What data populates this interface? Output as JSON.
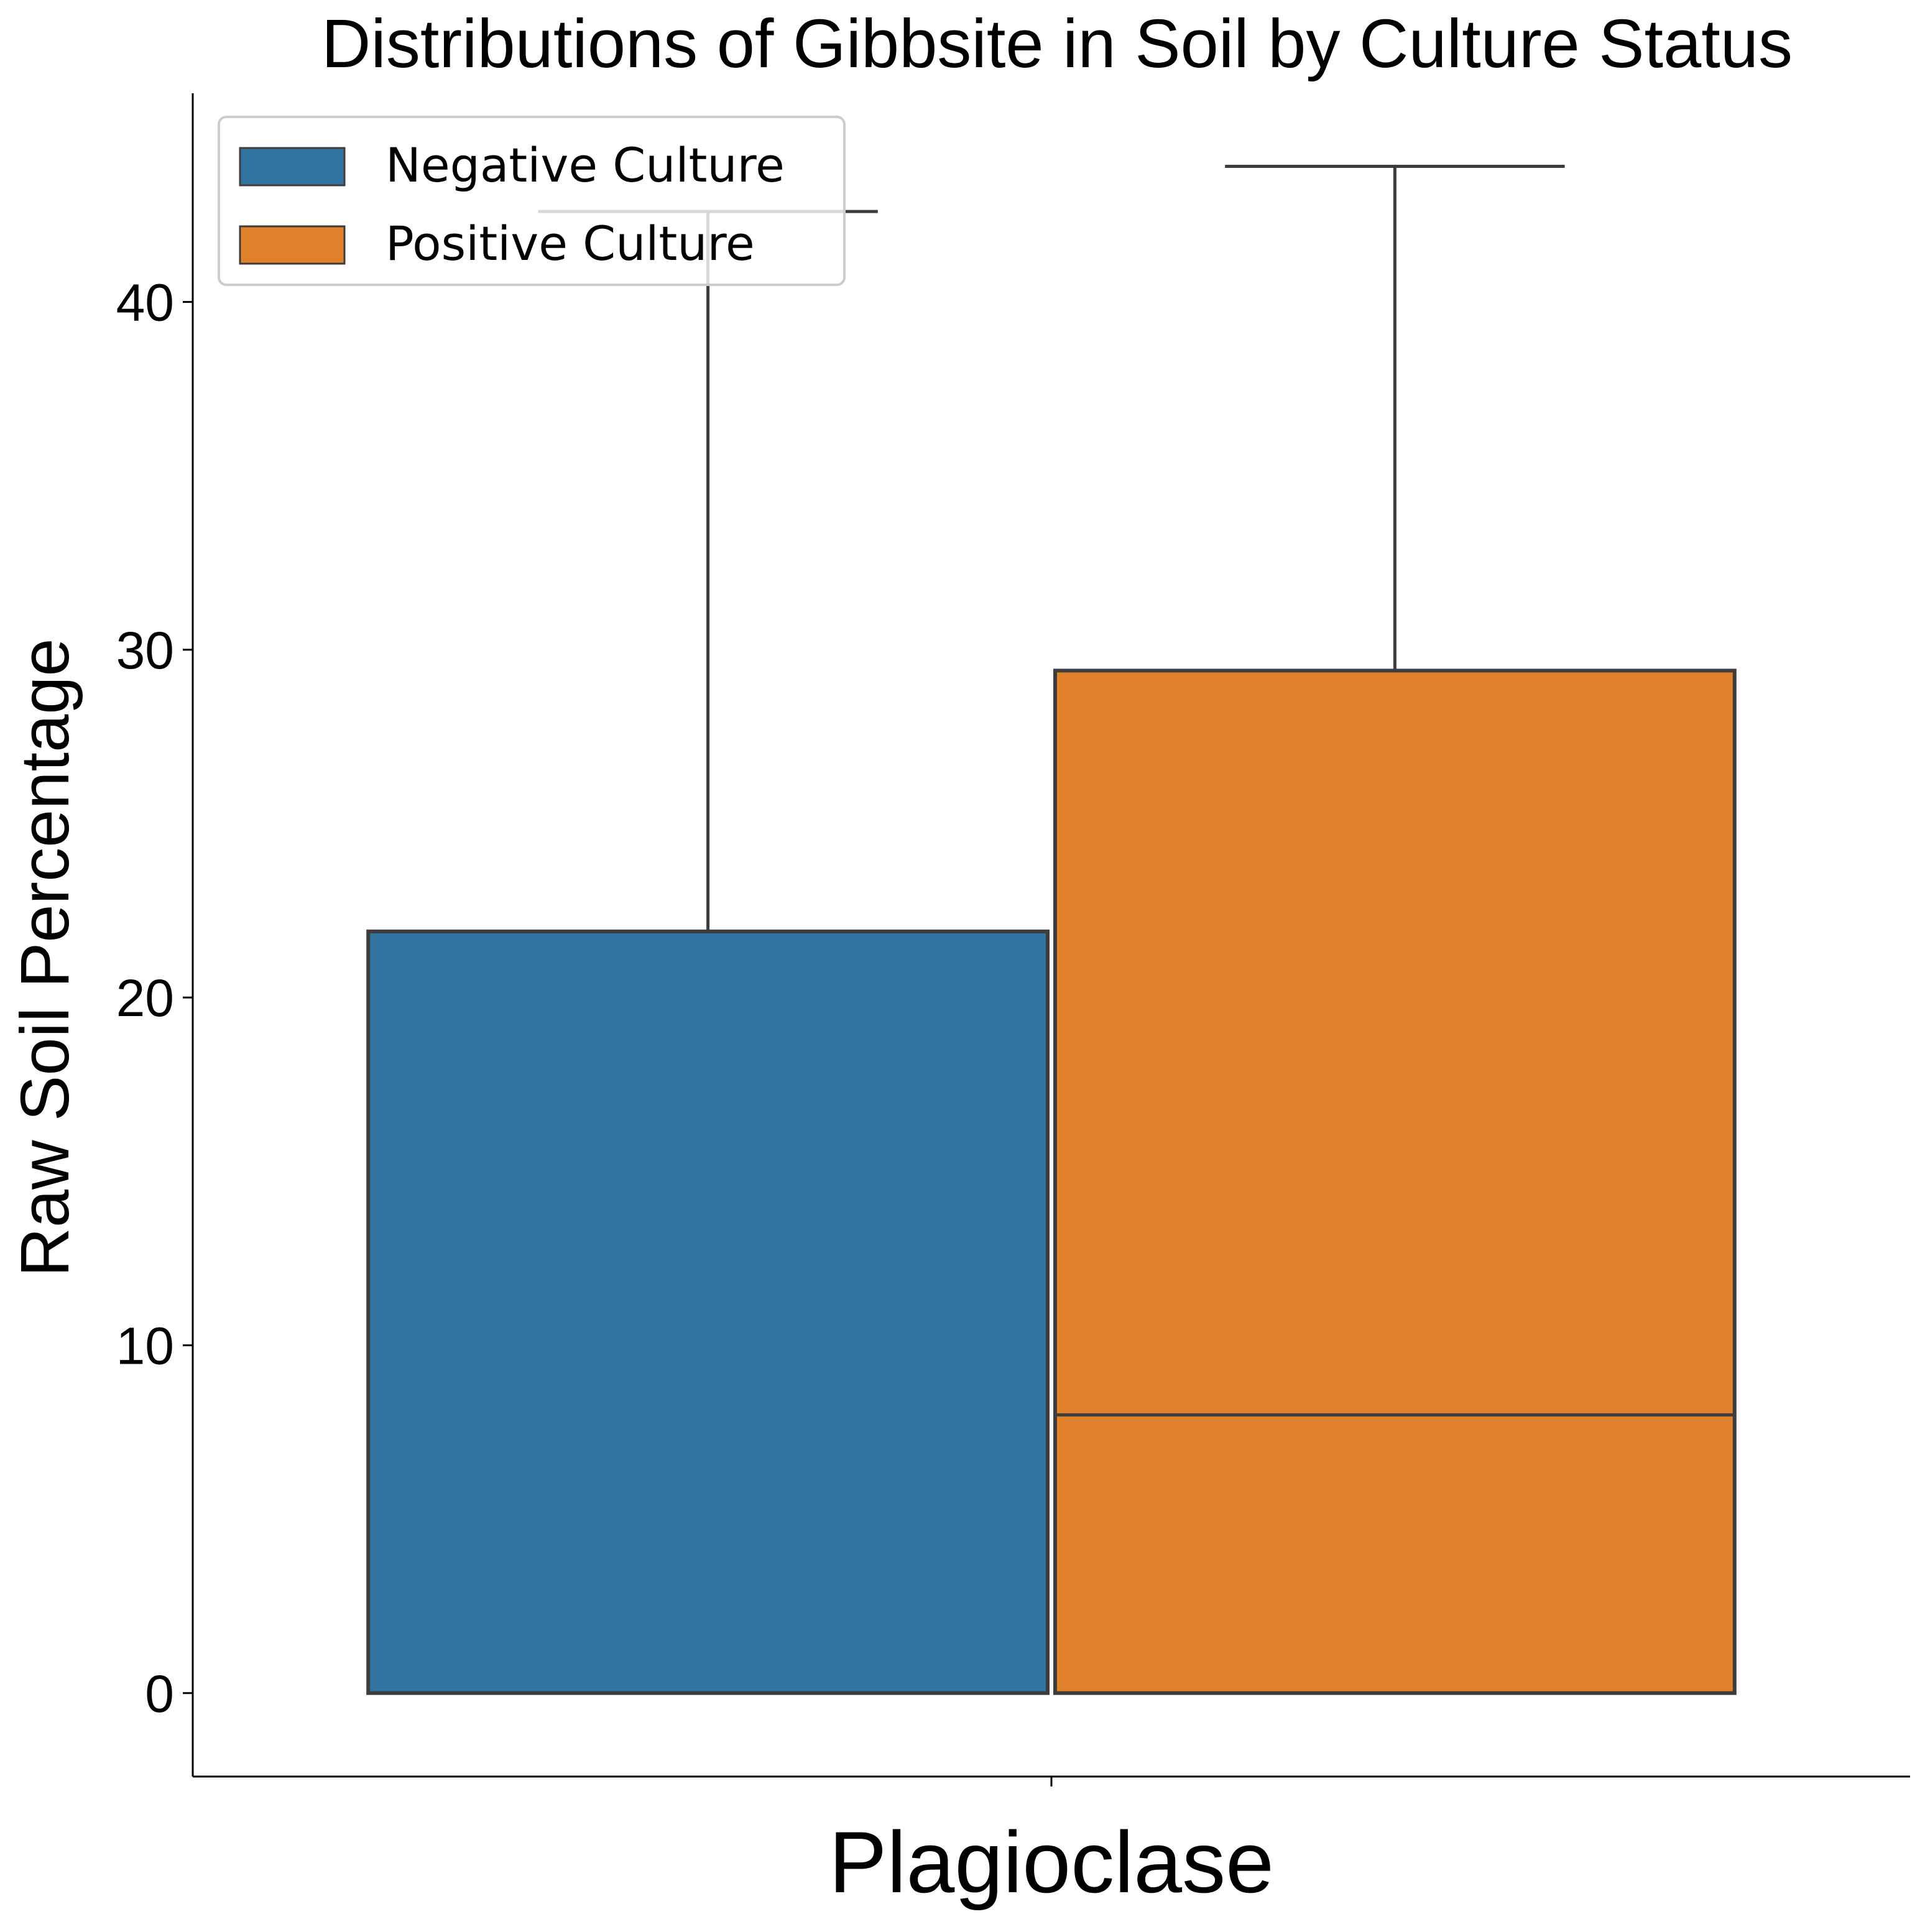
{
  "chart_data": {
    "type": "box",
    "title": "Distributions of Gibbsite in Soil by Culture Status",
    "xlabel": "",
    "ylabel": "Raw Soil Percentage",
    "categories": [
      "Plagioclase"
    ],
    "ylim": [
      -2.4,
      46.0
    ],
    "yticks": [
      0,
      10,
      20,
      30,
      40
    ],
    "ytick_labels": [
      "0",
      "10",
      "20",
      "30",
      "40"
    ],
    "grid": false,
    "legend_position": "top-left",
    "series": [
      {
        "name": "Negative Culture",
        "color": "#3274a1",
        "boxes": [
          {
            "category": "Plagioclase",
            "whisker_low": 0,
            "q1": 0,
            "median": 0,
            "q3": 21.9,
            "whisker_high": 42.6
          }
        ]
      },
      {
        "name": "Positive Culture",
        "color": "#e1812c",
        "boxes": [
          {
            "category": "Plagioclase",
            "whisker_low": 0,
            "q1": 0,
            "median": 8.0,
            "q3": 29.4,
            "whisker_high": 43.9
          }
        ]
      }
    ]
  },
  "colors": {
    "outline": "#3d3d3d",
    "axis": "#000000"
  }
}
